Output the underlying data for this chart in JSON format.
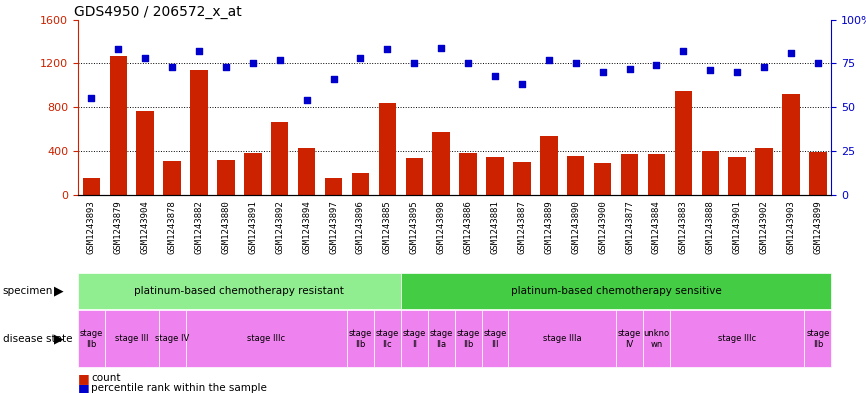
{
  "title": "GDS4950 / 206572_x_at",
  "samples": [
    "GSM1243893",
    "GSM1243879",
    "GSM1243904",
    "GSM1243878",
    "GSM1243882",
    "GSM1243880",
    "GSM1243891",
    "GSM1243892",
    "GSM1243894",
    "GSM1243897",
    "GSM1243896",
    "GSM1243885",
    "GSM1243895",
    "GSM1243898",
    "GSM1243886",
    "GSM1243881",
    "GSM1243887",
    "GSM1243889",
    "GSM1243890",
    "GSM1243900",
    "GSM1243877",
    "GSM1243884",
    "GSM1243883",
    "GSM1243888",
    "GSM1243901",
    "GSM1243902",
    "GSM1243903",
    "GSM1243899"
  ],
  "counts": [
    150,
    1270,
    760,
    305,
    1140,
    320,
    380,
    660,
    430,
    155,
    200,
    840,
    330,
    570,
    380,
    340,
    300,
    540,
    350,
    285,
    375,
    370,
    950,
    400,
    345,
    430,
    920,
    390
  ],
  "percentile": [
    55,
    83,
    78,
    73,
    82,
    73,
    75,
    77,
    54,
    66,
    78,
    83,
    75,
    84,
    75,
    68,
    63,
    77,
    75,
    70,
    72,
    74,
    82,
    71,
    70,
    73,
    81,
    75
  ],
  "ylim_left": [
    0,
    1600
  ],
  "ylim_right": [
    0,
    100
  ],
  "yticks_left": [
    0,
    400,
    800,
    1200,
    1600
  ],
  "yticks_right": [
    0,
    25,
    50,
    75,
    100
  ],
  "bar_color": "#CC2200",
  "dot_color": "#0000CC",
  "left_yaxis_color": "#CC2200",
  "right_yaxis_color": "#0000CC",
  "plot_bg": "#FFFFFF",
  "xticklabel_bg": "#D8D8D8",
  "specimen_groups": [
    {
      "label": "platinum-based chemotherapy resistant",
      "start": 0,
      "end": 11,
      "color": "#90EE90"
    },
    {
      "label": "platinum-based chemotherapy sensitive",
      "start": 12,
      "end": 27,
      "color": "#44CC44"
    }
  ],
  "disease_groups": [
    {
      "label": "stage\nIIb",
      "start": 0,
      "end": 0,
      "color": "#EE82EE"
    },
    {
      "label": "stage III",
      "start": 1,
      "end": 2,
      "color": "#EE82EE"
    },
    {
      "label": "stage IV",
      "start": 3,
      "end": 3,
      "color": "#EE82EE"
    },
    {
      "label": "stage IIIc",
      "start": 4,
      "end": 9,
      "color": "#EE82EE"
    },
    {
      "label": "stage\nIIb",
      "start": 10,
      "end": 10,
      "color": "#EE82EE"
    },
    {
      "label": "stage\nIIc",
      "start": 11,
      "end": 11,
      "color": "#EE82EE"
    },
    {
      "label": "stage\nII",
      "start": 12,
      "end": 12,
      "color": "#EE82EE"
    },
    {
      "label": "stage\nIIa",
      "start": 13,
      "end": 13,
      "color": "#EE82EE"
    },
    {
      "label": "stage\nIIb",
      "start": 14,
      "end": 14,
      "color": "#EE82EE"
    },
    {
      "label": "stage\nIII",
      "start": 15,
      "end": 15,
      "color": "#EE82EE"
    },
    {
      "label": "stage IIIa",
      "start": 16,
      "end": 19,
      "color": "#EE82EE"
    },
    {
      "label": "stage\nIV",
      "start": 20,
      "end": 20,
      "color": "#EE82EE"
    },
    {
      "label": "unkno\nwn",
      "start": 21,
      "end": 21,
      "color": "#EE82EE"
    },
    {
      "label": "stage IIIc",
      "start": 22,
      "end": 26,
      "color": "#EE82EE"
    },
    {
      "label": "stage\nIIb",
      "start": 27,
      "end": 27,
      "color": "#EE82EE"
    }
  ],
  "title_fontsize": 10,
  "label_fontsize": 7
}
